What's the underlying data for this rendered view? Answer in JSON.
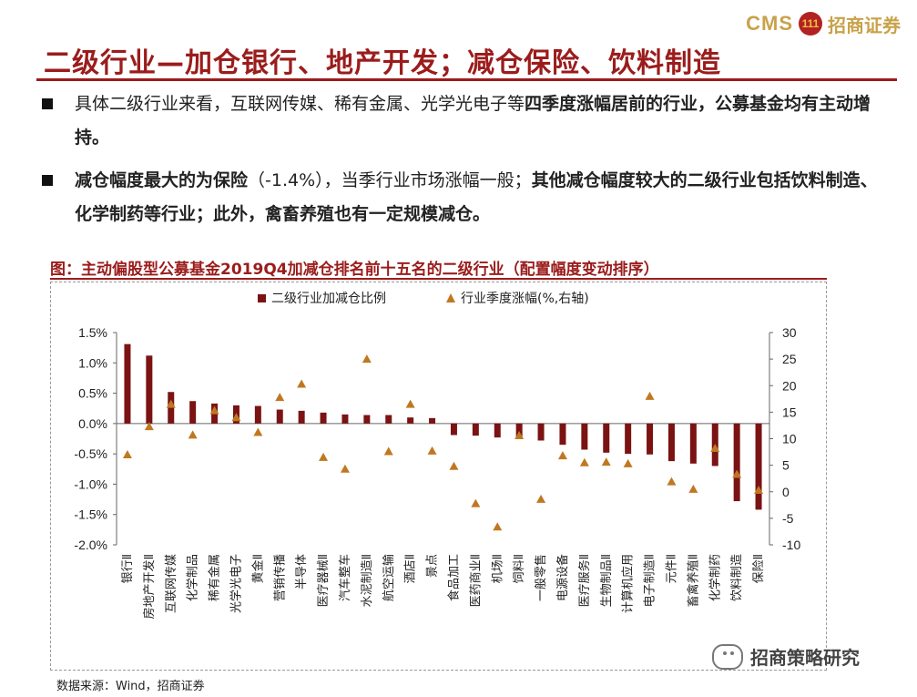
{
  "brand": {
    "cms": "CMS",
    "logo_text": "111",
    "cn_name": "招商证券"
  },
  "title": "二级行业—加仓银行、地产开发；减仓保险、饮料制造",
  "bullets": [
    {
      "normal": "具体二级行业来看，互联网传媒、稀有金属、光学光电子等",
      "bold": "四季度涨幅居前的行业，公募基金均有主动增持。"
    },
    {
      "bold": "减仓幅度最大的为保险",
      "normal": "（-1.4%），当季行业市场涨幅一般；",
      "bold2": "其他减仓幅度较大的二级行业包括饮料制造、化学制药等行业；此外，禽畜养殖也有一定规模减仓。"
    }
  ],
  "figure_title": "图：主动偏股型公募基金2019Q4加减仓排名前十五名的二级行业（配置幅度变动排序）",
  "source": "数据来源：Wind，招商证券",
  "watermark": "招商策略研究",
  "colors": {
    "bar": "#7b1313",
    "marker": "#c07820",
    "title": "#9b1c1c"
  },
  "chart_data": {
    "type": "bar",
    "legend": [
      "二级行业加减仓比例",
      "行业季度涨幅(%,右轴)"
    ],
    "categories": [
      "银行Ⅱ",
      "房地产开发Ⅱ",
      "互联网传媒",
      "化学制品",
      "稀有金属",
      "光学光电子",
      "黄金Ⅱ",
      "营销传播",
      "半导体",
      "医疗器械Ⅱ",
      "汽车整车",
      "水泥制造Ⅱ",
      "航空运输",
      "酒店Ⅱ",
      "景点",
      "食品加工",
      "医药商业Ⅱ",
      "机场Ⅱ",
      "饲料Ⅱ",
      "一般零售",
      "电源设备",
      "医疗服务Ⅱ",
      "生物制品Ⅱ",
      "计算机应用",
      "电子制造Ⅱ",
      "元件Ⅱ",
      "畜禽养殖Ⅱ",
      "化学制药",
      "饮料制造",
      "保险Ⅱ"
    ],
    "series": [
      {
        "name": "二级行业加减仓比例",
        "axis": "left",
        "type": "bar",
        "values": [
          1.31,
          1.12,
          0.52,
          0.37,
          0.33,
          0.3,
          0.29,
          0.23,
          0.21,
          0.18,
          0.15,
          0.14,
          0.14,
          0.1,
          0.09,
          -0.19,
          -0.2,
          -0.23,
          -0.25,
          -0.28,
          -0.35,
          -0.43,
          -0.48,
          -0.5,
          -0.51,
          -0.62,
          -0.66,
          -0.7,
          -1.28,
          -1.42
        ]
      },
      {
        "name": "行业季度涨幅(%,右轴)",
        "axis": "right",
        "type": "scatter",
        "values": [
          7.0,
          12.3,
          16.5,
          10.7,
          15.3,
          14.0,
          11.2,
          17.8,
          20.3,
          6.5,
          4.3,
          25.0,
          7.6,
          16.5,
          7.7,
          4.8,
          -2.2,
          -6.6,
          10.6,
          -1.4,
          6.8,
          5.5,
          5.6,
          5.3,
          18.0,
          1.9,
          0.5,
          8.2,
          3.3,
          0.3
        ]
      }
    ],
    "y_left": {
      "min": -2.0,
      "max": 1.5,
      "ticks": [
        "1.5%",
        "1.0%",
        "0.5%",
        "0.0%",
        "-0.5%",
        "-1.0%",
        "-1.5%",
        "-2.0%"
      ]
    },
    "y_right": {
      "min": -10,
      "max": 30,
      "ticks": [
        "30",
        "25",
        "20",
        "15",
        "10",
        "5",
        "0",
        "-5",
        "-10"
      ]
    }
  }
}
